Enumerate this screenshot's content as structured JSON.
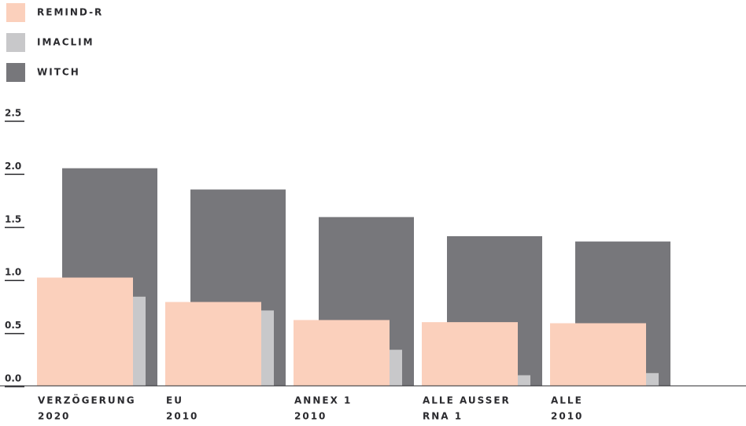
{
  "chart_data": {
    "type": "bar",
    "categories": [
      [
        "VERZÖGERUNG",
        "2020"
      ],
      [
        "EU",
        "2010"
      ],
      [
        "ANNEX 1",
        "2010"
      ],
      [
        "ALLE AUSSER",
        "RNA 1"
      ],
      [
        "ALLE",
        "2010"
      ]
    ],
    "series": [
      {
        "name": "REMIND-R",
        "color": "#fbd0bc",
        "values": [
          1.02,
          0.79,
          0.62,
          0.6,
          0.59
        ]
      },
      {
        "name": "IMACLIM",
        "color": "#c8c8ca",
        "values": [
          0.84,
          0.71,
          0.34,
          0.1,
          0.12
        ]
      },
      {
        "name": "WITCH",
        "color": "#77777b",
        "values": [
          2.05,
          1.85,
          1.59,
          1.41,
          1.36
        ]
      }
    ],
    "ylim": [
      0,
      2.5
    ],
    "yticks": [
      {
        "value": 0,
        "label": "0.0"
      },
      0.5,
      {
        "value": 1,
        "label": "1.0"
      },
      1.5,
      {
        "value": 2,
        "label": "2.0"
      },
      2.5
    ],
    "legend": "top-left"
  }
}
